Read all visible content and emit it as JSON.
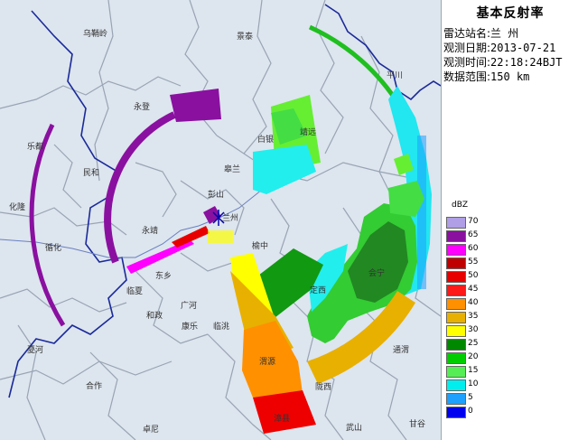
{
  "panel": {
    "title": "基本反射率",
    "station_label": "雷达站名:",
    "station_value": "兰 州",
    "date_label": "观测日期:",
    "date_value": "2013-07-21",
    "time_label": "观测时间:",
    "time_value": "22:18:24BJT",
    "range_label": "数据范围:",
    "range_value": "150 km"
  },
  "legend": {
    "unit": "dBZ",
    "entries": [
      {
        "label": "70",
        "color": "#b09ee6"
      },
      {
        "label": "65",
        "color": "#8a10a0"
      },
      {
        "label": "60",
        "color": "#ff00ff"
      },
      {
        "label": "55",
        "color": "#c00000"
      },
      {
        "label": "50",
        "color": "#e80000"
      },
      {
        "label": "45",
        "color": "#ff1a1a"
      },
      {
        "label": "40",
        "color": "#ff9000"
      },
      {
        "label": "35",
        "color": "#e8b000"
      },
      {
        "label": "30",
        "color": "#ffff00"
      },
      {
        "label": "25",
        "color": "#008800"
      },
      {
        "label": "20",
        "color": "#00cc00"
      },
      {
        "label": "15",
        "color": "#55ee55"
      },
      {
        "label": "10",
        "color": "#00eeee"
      },
      {
        "label": "5",
        "color": "#1ea0ff"
      },
      {
        "label": "0",
        "color": "#0000ee"
      }
    ]
  },
  "map": {
    "places": [
      {
        "name": "乌鞘岭",
        "key": "wuqiaoling"
      },
      {
        "name": "景泰",
        "key": "jingtai"
      },
      {
        "name": "永登",
        "key": "yongdeng"
      },
      {
        "name": "靖远",
        "key": "jingyuan"
      },
      {
        "name": "白银",
        "key": "baiyin"
      },
      {
        "name": "平川",
        "key": "pingchuan"
      },
      {
        "name": "乐都",
        "key": "ledu"
      },
      {
        "name": "民和",
        "key": "minhe"
      },
      {
        "name": "皋兰",
        "key": "gaolan"
      },
      {
        "name": "彭山",
        "key": "pengshan"
      },
      {
        "name": "兰州",
        "key": "lanzhou"
      },
      {
        "name": "化隆",
        "key": "hualong"
      },
      {
        "name": "循化",
        "key": "xunhua"
      },
      {
        "name": "永靖",
        "key": "yongjing"
      },
      {
        "name": "榆中",
        "key": "yuzhong"
      },
      {
        "name": "东乡",
        "key": "dongxiang"
      },
      {
        "name": "会宁",
        "key": "huining"
      },
      {
        "name": "临夏",
        "key": "linxia"
      },
      {
        "name": "定西",
        "key": "dingxi"
      },
      {
        "name": "和政",
        "key": "hezheng"
      },
      {
        "name": "广河",
        "key": "guanghe"
      },
      {
        "name": "康乐",
        "key": "kangle"
      },
      {
        "name": "临洮",
        "key": "lintao"
      },
      {
        "name": "夏河",
        "key": "xiahe"
      },
      {
        "name": "渭源",
        "key": "weiyuan"
      },
      {
        "name": "陇西",
        "key": "longxi"
      },
      {
        "name": "通渭",
        "key": "tongwei"
      },
      {
        "name": "合作",
        "key": "hezuo"
      },
      {
        "name": "漳县",
        "key": "zhangxian"
      },
      {
        "name": "卓尼",
        "key": "zhuoni"
      },
      {
        "name": "武山",
        "key": "wushan"
      },
      {
        "name": "甘谷",
        "key": "gangu"
      }
    ]
  }
}
